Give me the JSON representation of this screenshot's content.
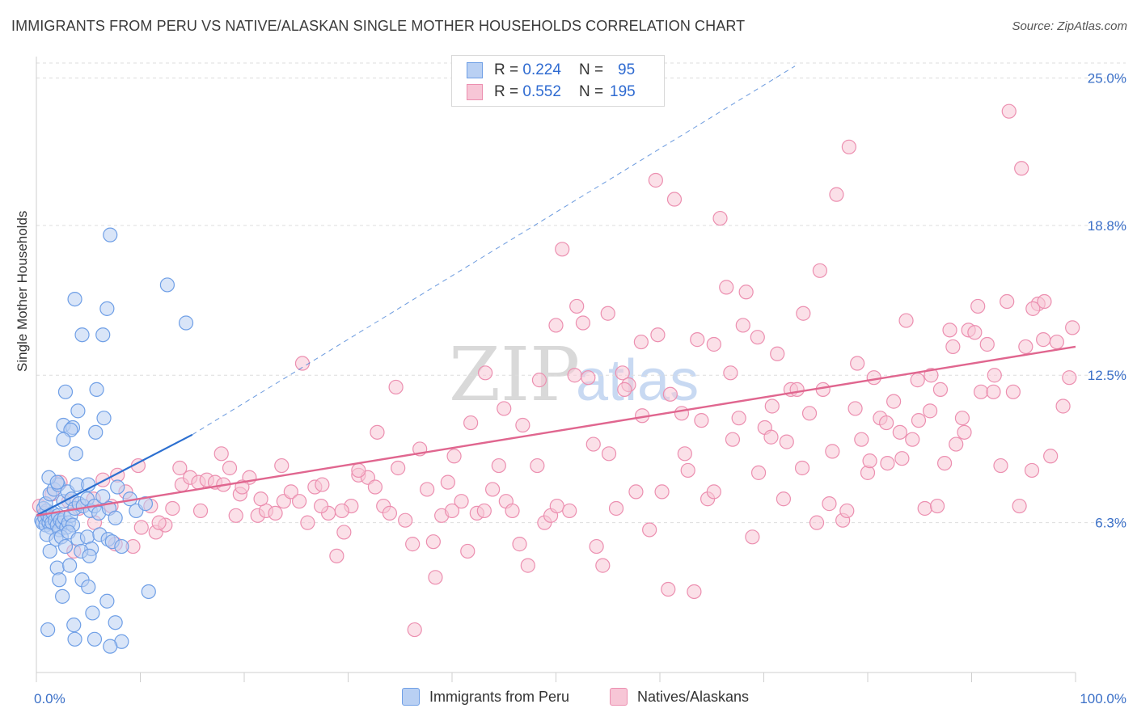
{
  "title": "IMMIGRANTS FROM PERU VS NATIVE/ALASKAN SINGLE MOTHER HOUSEHOLDS CORRELATION CHART",
  "source": "Source: ZipAtlas.com",
  "watermark": {
    "zip": "ZIP",
    "atlas": "atlas"
  },
  "colors": {
    "blue": "#6f9fe6",
    "blue_fill": "#b9d0f3",
    "blue_line": "#2c6fd0",
    "pink": "#ec8fb0",
    "pink_fill": "#f7c6d6",
    "pink_line": "#e0668f",
    "accent": "#3a6fc7"
  },
  "legend_top": {
    "rows": [
      {
        "r_label": "R =",
        "r_value": "0.224",
        "n_label": "N =",
        "n_value": "95"
      },
      {
        "r_label": "R =",
        "r_value": "0.552",
        "n_label": "N =",
        "n_value": "195"
      }
    ]
  },
  "legend_bottom": [
    "Immigrants from Peru",
    "Natives/Alaskans"
  ],
  "chart_data": {
    "type": "scatter",
    "title": "IMMIGRANTS FROM PERU VS NATIVE/ALASKAN SINGLE MOTHER HOUSEHOLDS CORRELATION CHART",
    "xlabel": "",
    "ylabel": "Single Mother Households",
    "xlim": [
      0,
      100
    ],
    "ylim": [
      0,
      25.9
    ],
    "x_tick_labels": [
      "0.0%",
      "100.0%"
    ],
    "y_ticks": [
      6.3,
      12.5,
      18.8,
      25.0
    ],
    "y_tick_labels": [
      "6.3%",
      "12.5%",
      "18.8%",
      "25.0%"
    ],
    "grid": "horizontal dashed",
    "legend_position": "top-center",
    "series": [
      {
        "name": "Immigrants from Peru",
        "trend": {
          "x0": 0,
          "y0": 6.6,
          "x1": 15,
          "y1": 10.0,
          "dashed_to": [
            73,
            25.5
          ]
        },
        "points": [
          [
            0.5,
            6.4
          ],
          [
            0.6,
            6.3
          ],
          [
            0.8,
            6.5
          ],
          [
            0.9,
            6.2
          ],
          [
            1.0,
            6.8
          ],
          [
            1.1,
            6.6
          ],
          [
            1.2,
            6.3
          ],
          [
            1.3,
            6.5
          ],
          [
            1.4,
            6.1
          ],
          [
            1.5,
            6.3
          ],
          [
            0.7,
            6.9
          ],
          [
            1.6,
            6.7
          ],
          [
            1.8,
            6.4
          ],
          [
            2.0,
            6.2
          ],
          [
            2.1,
            6.6
          ],
          [
            2.2,
            6.0
          ],
          [
            2.3,
            6.4
          ],
          [
            2.5,
            6.3
          ],
          [
            2.7,
            6.5
          ],
          [
            2.9,
            6.1
          ],
          [
            3.1,
            6.3
          ],
          [
            3.3,
            6.6
          ],
          [
            3.5,
            6.2
          ],
          [
            0.9,
            7.1
          ],
          [
            1.3,
            7.5
          ],
          [
            1.7,
            7.7
          ],
          [
            2.1,
            7.9
          ],
          [
            2.6,
            7.2
          ],
          [
            3.0,
            7.6
          ],
          [
            3.4,
            7.3
          ],
          [
            3.7,
            6.9
          ],
          [
            4.1,
            7.1
          ],
          [
            4.5,
            7.0
          ],
          [
            4.9,
            7.3
          ],
          [
            5.2,
            6.8
          ],
          [
            5.6,
            7.0
          ],
          [
            6.0,
            6.7
          ],
          [
            6.4,
            7.4
          ],
          [
            7.0,
            6.9
          ],
          [
            7.6,
            6.5
          ],
          [
            1.2,
            8.2
          ],
          [
            2.0,
            8.0
          ],
          [
            3.9,
            7.9
          ],
          [
            5.0,
            7.9
          ],
          [
            7.8,
            7.8
          ],
          [
            9.0,
            7.3
          ],
          [
            9.6,
            6.8
          ],
          [
            10.5,
            7.1
          ],
          [
            1.0,
            5.8
          ],
          [
            1.9,
            5.6
          ],
          [
            2.4,
            5.7
          ],
          [
            3.1,
            5.9
          ],
          [
            4.0,
            5.6
          ],
          [
            4.9,
            5.7
          ],
          [
            5.3,
            5.2
          ],
          [
            6.1,
            5.8
          ],
          [
            6.9,
            5.6
          ],
          [
            7.3,
            5.5
          ],
          [
            8.2,
            5.3
          ],
          [
            1.3,
            5.1
          ],
          [
            2.8,
            5.3
          ],
          [
            4.3,
            5.1
          ],
          [
            5.1,
            4.9
          ],
          [
            2.0,
            4.4
          ],
          [
            3.2,
            4.5
          ],
          [
            2.2,
            3.9
          ],
          [
            4.4,
            3.9
          ],
          [
            5.0,
            3.6
          ],
          [
            2.5,
            3.2
          ],
          [
            6.8,
            3.0
          ],
          [
            10.8,
            3.4
          ],
          [
            5.4,
            2.5
          ],
          [
            3.6,
            2.0
          ],
          [
            7.6,
            2.1
          ],
          [
            3.7,
            1.4
          ],
          [
            5.6,
            1.4
          ],
          [
            8.2,
            1.3
          ],
          [
            7.1,
            1.1
          ],
          [
            1.1,
            1.8
          ],
          [
            2.6,
            10.4
          ],
          [
            3.5,
            10.3
          ],
          [
            3.3,
            10.2
          ],
          [
            2.6,
            9.8
          ],
          [
            3.8,
            9.2
          ],
          [
            5.7,
            10.1
          ],
          [
            6.5,
            10.7
          ],
          [
            5.8,
            11.9
          ],
          [
            2.8,
            11.8
          ],
          [
            4.0,
            11.0
          ],
          [
            4.4,
            14.2
          ],
          [
            6.4,
            14.2
          ],
          [
            6.8,
            15.3
          ],
          [
            3.7,
            15.7
          ],
          [
            12.6,
            16.3
          ],
          [
            14.4,
            14.7
          ],
          [
            7.1,
            18.4
          ]
        ]
      },
      {
        "name": "Natives/Alaskans",
        "trend": {
          "x0": 0,
          "y0": 6.6,
          "x1": 100,
          "y1": 13.7
        },
        "points": [
          [
            0.3,
            7.0
          ],
          [
            0.8,
            6.7
          ],
          [
            1.5,
            7.5
          ],
          [
            2.3,
            8.0
          ],
          [
            3.1,
            7.2
          ],
          [
            4.1,
            6.9
          ],
          [
            5.5,
            7.3
          ],
          [
            6.4,
            8.1
          ],
          [
            7.2,
            7.0
          ],
          [
            7.8,
            8.3
          ],
          [
            8.6,
            7.6
          ],
          [
            9.3,
            5.3
          ],
          [
            10.1,
            6.1
          ],
          [
            11.0,
            7.0
          ],
          [
            11.5,
            5.9
          ],
          [
            12.4,
            6.2
          ],
          [
            13.1,
            6.9
          ],
          [
            14.0,
            7.9
          ],
          [
            14.8,
            8.2
          ],
          [
            15.6,
            8.0
          ],
          [
            16.4,
            8.1
          ],
          [
            17.2,
            8.0
          ],
          [
            18.0,
            7.9
          ],
          [
            18.6,
            8.6
          ],
          [
            19.2,
            6.6
          ],
          [
            19.6,
            7.5
          ],
          [
            20.5,
            8.2
          ],
          [
            21.3,
            6.6
          ],
          [
            22.1,
            6.8
          ],
          [
            23.0,
            6.7
          ],
          [
            23.8,
            7.2
          ],
          [
            24.5,
            7.6
          ],
          [
            25.3,
            7.2
          ],
          [
            26.1,
            6.3
          ],
          [
            26.8,
            7.8
          ],
          [
            27.5,
            7.9
          ],
          [
            28.1,
            6.7
          ],
          [
            28.9,
            4.9
          ],
          [
            29.6,
            5.9
          ],
          [
            30.3,
            7.0
          ],
          [
            31.0,
            8.3
          ],
          [
            31.9,
            8.2
          ],
          [
            32.6,
            7.8
          ],
          [
            33.4,
            7.0
          ],
          [
            34.0,
            6.7
          ],
          [
            34.8,
            8.6
          ],
          [
            35.5,
            6.4
          ],
          [
            36.2,
            5.4
          ],
          [
            36.9,
            9.4
          ],
          [
            37.6,
            7.7
          ],
          [
            38.4,
            4.0
          ],
          [
            39.0,
            6.6
          ],
          [
            39.6,
            8.0
          ],
          [
            40.2,
            9.1
          ],
          [
            40.9,
            7.2
          ],
          [
            41.5,
            5.1
          ],
          [
            42.4,
            6.7
          ],
          [
            43.1,
            6.8
          ],
          [
            43.9,
            7.7
          ],
          [
            44.5,
            8.7
          ],
          [
            45.2,
            7.2
          ],
          [
            45.8,
            6.8
          ],
          [
            46.5,
            5.4
          ],
          [
            47.3,
            4.5
          ],
          [
            48.2,
            8.7
          ],
          [
            48.9,
            6.3
          ],
          [
            49.5,
            6.6
          ],
          [
            50.1,
            7.0
          ],
          [
            50.6,
            17.8
          ],
          [
            51.3,
            6.8
          ],
          [
            52.0,
            15.4
          ],
          [
            52.6,
            14.7
          ],
          [
            53.1,
            12.4
          ],
          [
            53.9,
            5.3
          ],
          [
            54.5,
            4.5
          ],
          [
            55.1,
            9.2
          ],
          [
            55.8,
            6.9
          ],
          [
            56.4,
            12.6
          ],
          [
            57.0,
            12.1
          ],
          [
            57.7,
            7.6
          ],
          [
            58.3,
            10.8
          ],
          [
            59.0,
            6.0
          ],
          [
            59.6,
            20.7
          ],
          [
            60.2,
            7.6
          ],
          [
            60.8,
            3.5
          ],
          [
            61.4,
            19.9
          ],
          [
            62.1,
            10.9
          ],
          [
            62.7,
            8.5
          ],
          [
            63.3,
            3.4
          ],
          [
            64.0,
            10.6
          ],
          [
            64.6,
            7.3
          ],
          [
            65.2,
            7.6
          ],
          [
            65.8,
            19.1
          ],
          [
            66.4,
            16.2
          ],
          [
            67.0,
            9.8
          ],
          [
            67.6,
            10.7
          ],
          [
            68.3,
            16.0
          ],
          [
            68.9,
            5.7
          ],
          [
            69.5,
            8.4
          ],
          [
            70.1,
            10.3
          ],
          [
            70.7,
            9.9
          ],
          [
            71.3,
            13.4
          ],
          [
            71.9,
            7.3
          ],
          [
            72.6,
            11.9
          ],
          [
            73.2,
            11.9
          ],
          [
            73.8,
            15.1
          ],
          [
            74.4,
            10.9
          ],
          [
            75.1,
            6.3
          ],
          [
            75.7,
            11.9
          ],
          [
            76.3,
            7.1
          ],
          [
            77.0,
            20.1
          ],
          [
            77.6,
            6.4
          ],
          [
            78.2,
            22.1
          ],
          [
            78.8,
            11.1
          ],
          [
            79.4,
            9.8
          ],
          [
            80.0,
            8.4
          ],
          [
            80.6,
            12.4
          ],
          [
            81.2,
            10.7
          ],
          [
            81.9,
            8.8
          ],
          [
            82.5,
            11.4
          ],
          [
            83.1,
            10.1
          ],
          [
            83.7,
            14.8
          ],
          [
            84.3,
            9.8
          ],
          [
            84.9,
            10.6
          ],
          [
            85.5,
            6.9
          ],
          [
            86.1,
            12.5
          ],
          [
            86.7,
            7.0
          ],
          [
            87.4,
            8.8
          ],
          [
            87.9,
            14.4
          ],
          [
            88.5,
            9.6
          ],
          [
            89.1,
            10.7
          ],
          [
            89.7,
            14.4
          ],
          [
            90.3,
            14.3
          ],
          [
            90.9,
            11.8
          ],
          [
            91.5,
            13.8
          ],
          [
            92.2,
            12.5
          ],
          [
            92.8,
            8.7
          ],
          [
            93.4,
            15.6
          ],
          [
            94.0,
            11.8
          ],
          [
            94.6,
            7.0
          ],
          [
            95.2,
            13.7
          ],
          [
            95.8,
            8.5
          ],
          [
            96.4,
            15.5
          ],
          [
            97.0,
            15.6
          ],
          [
            97.6,
            9.1
          ],
          [
            98.2,
            13.9
          ],
          [
            98.8,
            11.2
          ],
          [
            99.4,
            12.4
          ],
          [
            99.7,
            14.5
          ],
          [
            96.9,
            14.0
          ],
          [
            95.9,
            15.3
          ],
          [
            94.8,
            21.2
          ],
          [
            93.6,
            23.6
          ],
          [
            92.1,
            11.8
          ],
          [
            90.6,
            15.4
          ],
          [
            89.3,
            10.1
          ],
          [
            88.2,
            13.7
          ],
          [
            87.0,
            11.9
          ],
          [
            86.0,
            11.0
          ],
          [
            84.8,
            12.3
          ],
          [
            83.3,
            9.0
          ],
          [
            81.8,
            10.5
          ],
          [
            80.2,
            8.9
          ],
          [
            79.0,
            13.0
          ],
          [
            78.0,
            6.8
          ],
          [
            76.6,
            9.3
          ],
          [
            75.4,
            16.9
          ],
          [
            73.7,
            8.6
          ],
          [
            72.2,
            9.7
          ],
          [
            70.8,
            11.2
          ],
          [
            69.4,
            14.1
          ],
          [
            68.0,
            14.6
          ],
          [
            66.8,
            12.6
          ],
          [
            65.2,
            13.8
          ],
          [
            63.6,
            14.0
          ],
          [
            62.4,
            9.2
          ],
          [
            61.0,
            11.7
          ],
          [
            59.8,
            14.2
          ],
          [
            58.2,
            13.9
          ],
          [
            56.6,
            11.9
          ],
          [
            55.0,
            15.1
          ],
          [
            53.6,
            9.6
          ],
          [
            51.8,
            12.5
          ],
          [
            50.0,
            14.6
          ],
          [
            48.4,
            12.3
          ],
          [
            46.8,
            10.4
          ],
          [
            45.0,
            11.1
          ],
          [
            43.2,
            12.6
          ],
          [
            41.8,
            10.5
          ],
          [
            40.0,
            6.8
          ],
          [
            38.2,
            5.5
          ],
          [
            36.4,
            1.8
          ],
          [
            34.6,
            12.0
          ],
          [
            32.8,
            10.1
          ],
          [
            31.0,
            8.5
          ],
          [
            29.4,
            6.8
          ],
          [
            27.4,
            7.0
          ],
          [
            25.6,
            13.0
          ],
          [
            23.6,
            8.7
          ],
          [
            21.6,
            7.3
          ],
          [
            19.8,
            7.8
          ],
          [
            17.8,
            9.2
          ],
          [
            15.8,
            6.8
          ],
          [
            13.8,
            8.6
          ],
          [
            11.8,
            6.3
          ],
          [
            9.8,
            8.7
          ],
          [
            7.6,
            5.4
          ],
          [
            5.6,
            6.3
          ],
          [
            3.6,
            5.1
          ]
        ]
      }
    ]
  }
}
